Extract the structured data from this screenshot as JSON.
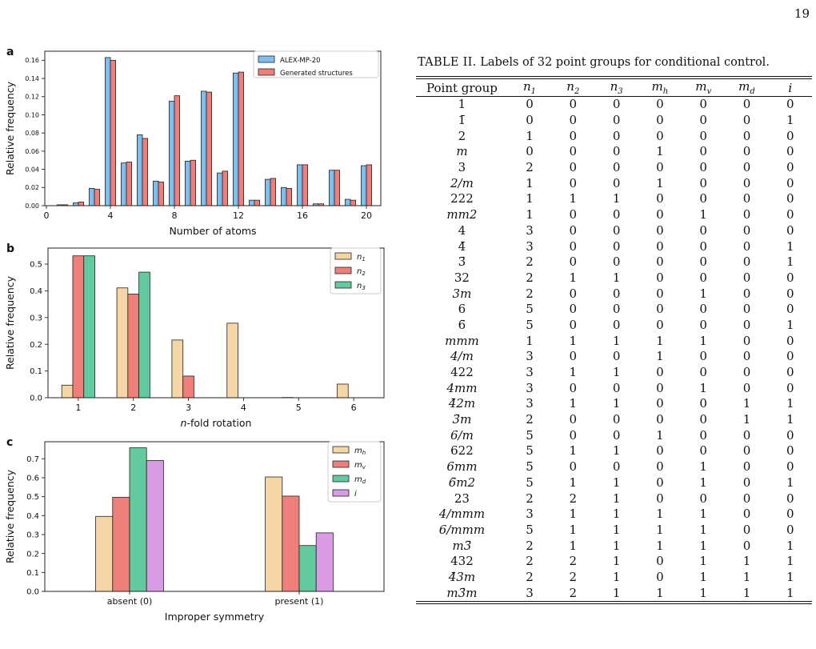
{
  "page_number": "19",
  "table": {
    "caption_label": "TABLE II.",
    "caption_text": "Labels of 32 point groups for conditional control.",
    "headers": [
      "Point group",
      "n1",
      "n2",
      "n3",
      "mh",
      "mv",
      "md",
      "i"
    ],
    "rows": [
      [
        "1",
        "0",
        "0",
        "0",
        "0",
        "0",
        "0",
        "0"
      ],
      [
        "1̄",
        "0",
        "0",
        "0",
        "0",
        "0",
        "0",
        "1"
      ],
      [
        "2",
        "1",
        "0",
        "0",
        "0",
        "0",
        "0",
        "0"
      ],
      [
        "m",
        "0",
        "0",
        "0",
        "1",
        "0",
        "0",
        "0"
      ],
      [
        "3",
        "2",
        "0",
        "0",
        "0",
        "0",
        "0",
        "0"
      ],
      [
        "2/m",
        "1",
        "0",
        "0",
        "1",
        "0",
        "0",
        "0"
      ],
      [
        "222",
        "1",
        "1",
        "1",
        "0",
        "0",
        "0",
        "0"
      ],
      [
        "mm2",
        "1",
        "0",
        "0",
        "0",
        "1",
        "0",
        "0"
      ],
      [
        "4",
        "3",
        "0",
        "0",
        "0",
        "0",
        "0",
        "0"
      ],
      [
        "4̄",
        "3",
        "0",
        "0",
        "0",
        "0",
        "0",
        "1"
      ],
      [
        "3̄",
        "2",
        "0",
        "0",
        "0",
        "0",
        "0",
        "1"
      ],
      [
        "32",
        "2",
        "1",
        "1",
        "0",
        "0",
        "0",
        "0"
      ],
      [
        "3m",
        "2",
        "0",
        "0",
        "0",
        "1",
        "0",
        "0"
      ],
      [
        "6",
        "5",
        "0",
        "0",
        "0",
        "0",
        "0",
        "0"
      ],
      [
        "6̄",
        "5",
        "0",
        "0",
        "0",
        "0",
        "0",
        "1"
      ],
      [
        "mmm",
        "1",
        "1",
        "1",
        "1",
        "1",
        "0",
        "0"
      ],
      [
        "4/m",
        "3",
        "0",
        "0",
        "1",
        "0",
        "0",
        "0"
      ],
      [
        "422",
        "3",
        "1",
        "1",
        "0",
        "0",
        "0",
        "0"
      ],
      [
        "4mm",
        "3",
        "0",
        "0",
        "0",
        "1",
        "0",
        "0"
      ],
      [
        "4̄2m",
        "3",
        "1",
        "1",
        "0",
        "0",
        "1",
        "1"
      ],
      [
        "3̄m",
        "2",
        "0",
        "0",
        "0",
        "0",
        "1",
        "1"
      ],
      [
        "6/m",
        "5",
        "0",
        "0",
        "1",
        "0",
        "0",
        "0"
      ],
      [
        "622",
        "5",
        "1",
        "1",
        "0",
        "0",
        "0",
        "0"
      ],
      [
        "6mm",
        "5",
        "0",
        "0",
        "0",
        "1",
        "0",
        "0"
      ],
      [
        "6̄m2",
        "5",
        "1",
        "1",
        "0",
        "1",
        "0",
        "1"
      ],
      [
        "23",
        "2",
        "2",
        "1",
        "0",
        "0",
        "0",
        "0"
      ],
      [
        "4/mmm",
        "3",
        "1",
        "1",
        "1",
        "1",
        "0",
        "0"
      ],
      [
        "6/mmm",
        "5",
        "1",
        "1",
        "1",
        "1",
        "0",
        "0"
      ],
      [
        "m3̄",
        "2",
        "1",
        "1",
        "1",
        "1",
        "0",
        "1"
      ],
      [
        "432",
        "2",
        "2",
        "1",
        "0",
        "1",
        "1",
        "1"
      ],
      [
        "4̄3m",
        "2",
        "2",
        "1",
        "0",
        "1",
        "1",
        "1"
      ],
      [
        "m3̄m",
        "3",
        "2",
        "1",
        "1",
        "1",
        "1",
        "1"
      ]
    ]
  },
  "colors": {
    "blue": "#7fbfef",
    "red": "#ee7f7a",
    "tan": "#f5d7a7",
    "green": "#62ca9e",
    "violet": "#d99be3",
    "edge": "#222222"
  },
  "chart_data": [
    {
      "panel_label": "a",
      "type": "bar",
      "xlabel": "Number of atoms",
      "ylabel": "Relative frequency",
      "xlim": [
        -0.1,
        20.9
      ],
      "ylim": [
        0,
        0.17
      ],
      "xticks": [
        0,
        4,
        8,
        12,
        16,
        20
      ],
      "yticks": [
        0.0,
        0.02,
        0.04,
        0.06,
        0.08,
        0.1,
        0.12,
        0.14,
        0.16
      ],
      "ytick_labels": [
        "0.00",
        "0.02",
        "0.04",
        "0.06",
        "0.08",
        "0.10",
        "0.12",
        "0.14",
        "0.16"
      ],
      "bar_width": 0.33,
      "x": [
        1,
        2,
        3,
        4,
        5,
        6,
        7,
        8,
        9,
        10,
        11,
        12,
        13,
        14,
        15,
        16,
        17,
        18,
        19,
        20
      ],
      "legend_position": "top-right",
      "series": [
        {
          "name": "ALEX-MP-20",
          "color": "blue",
          "values": [
            0.001,
            0.003,
            0.019,
            0.163,
            0.047,
            0.078,
            0.027,
            0.115,
            0.049,
            0.126,
            0.036,
            0.146,
            0.006,
            0.029,
            0.02,
            0.045,
            0.002,
            0.039,
            0.007,
            0.044
          ]
        },
        {
          "name": "Generated structures",
          "color": "red",
          "values": [
            0.001,
            0.004,
            0.018,
            0.16,
            0.048,
            0.074,
            0.026,
            0.121,
            0.05,
            0.125,
            0.038,
            0.147,
            0.006,
            0.03,
            0.019,
            0.045,
            0.002,
            0.039,
            0.006,
            0.045
          ]
        }
      ]
    },
    {
      "panel_label": "b",
      "type": "bar",
      "xlabel": "n-fold rotation",
      "ylabel": "Relative frequency",
      "xlim": [
        0.45,
        6.55
      ],
      "ylim": [
        0,
        0.56
      ],
      "xticks": [
        1,
        2,
        3,
        4,
        5,
        6
      ],
      "yticks": [
        0.0,
        0.1,
        0.2,
        0.3,
        0.4,
        0.5
      ],
      "ytick_labels": [
        "0.0",
        "0.1",
        "0.2",
        "0.3",
        "0.4",
        "0.5"
      ],
      "bar_width": 0.2,
      "x": [
        1,
        2,
        3,
        4,
        5,
        6
      ],
      "legend_position": "top-right",
      "series": [
        {
          "name": "n",
          "sub": "1",
          "color": "tan",
          "values": [
            0.047,
            0.411,
            0.216,
            0.279,
            0.001,
            0.051
          ]
        },
        {
          "name": "n",
          "sub": "2",
          "color": "red",
          "values": [
            0.531,
            0.388,
            0.081,
            0,
            0,
            0
          ]
        },
        {
          "name": "n",
          "sub": "3",
          "color": "green",
          "values": [
            0.531,
            0.47,
            0,
            0,
            0,
            0
          ]
        }
      ]
    },
    {
      "panel_label": "c",
      "type": "bar",
      "xlabel": "Improper symmetry",
      "ylabel": "Relative frequency",
      "xlim": [
        -0.5,
        1.5
      ],
      "ylim": [
        0,
        0.79
      ],
      "xticks": [
        0,
        1
      ],
      "categories": [
        "absent (0)",
        "present (1)"
      ],
      "yticks": [
        0.0,
        0.1,
        0.2,
        0.3,
        0.4,
        0.5,
        0.6,
        0.7
      ],
      "ytick_labels": [
        "0.0",
        "0.1",
        "0.2",
        "0.3",
        "0.4",
        "0.5",
        "0.6",
        "0.7"
      ],
      "bar_width": 0.1,
      "x": [
        0,
        1
      ],
      "legend_position": "top-right",
      "series": [
        {
          "name": "m",
          "sub": "h",
          "color": "tan",
          "values": [
            0.396,
            0.604
          ]
        },
        {
          "name": "m",
          "sub": "v",
          "color": "red",
          "values": [
            0.497,
            0.503
          ]
        },
        {
          "name": "m",
          "sub": "d",
          "color": "green",
          "values": [
            0.758,
            0.242
          ]
        },
        {
          "name": "i",
          "sub": "",
          "color": "violet",
          "values": [
            0.691,
            0.309
          ]
        }
      ]
    }
  ]
}
